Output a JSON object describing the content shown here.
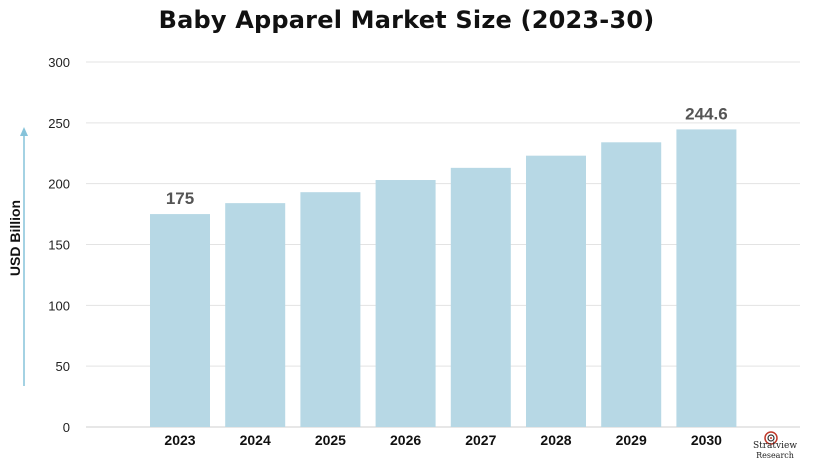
{
  "chart_data": {
    "type": "bar",
    "title": "Baby Apparel Market Size (2023-30)",
    "ylabel": "USD Billion",
    "categories": [
      "2023",
      "2024",
      "2025",
      "2026",
      "2027",
      "2028",
      "2029",
      "2030"
    ],
    "values": [
      175,
      184,
      193,
      203,
      213,
      223,
      234,
      244.6
    ],
    "data_labels": {
      "0": "175",
      "7": "244.6"
    },
    "yticks": [
      0,
      50,
      100,
      150,
      200,
      250,
      300
    ],
    "ylim": [
      0,
      300
    ],
    "grid": true,
    "bar_color": "#b7d8e5",
    "label_color": "#555555"
  },
  "logo": {
    "line1": "Stratview",
    "line2": "Research"
  }
}
